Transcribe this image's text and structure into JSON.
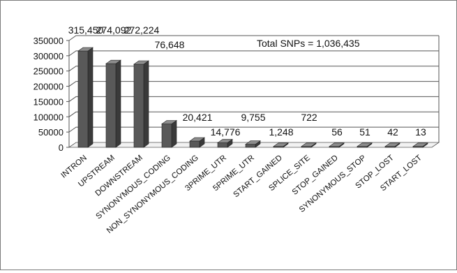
{
  "chart_data": {
    "type": "bar",
    "style": "3d-column",
    "annotation": "Total SNPs = 1,036,435",
    "categories": [
      "INTRON",
      "UPSTREAM",
      "DOWNSTREAM",
      "SYNONYMOUS_CODING",
      "NON_SYNONYMOUS_CODING",
      "3PRIME_UTR",
      "5PRIME_UTR",
      "START_GAINED",
      "SPLICE_SITE",
      "STOP_GAINED",
      "SYNONYMOUS_STOP",
      "STOP_LOST",
      "START_LOST"
    ],
    "values": [
      315450,
      274092,
      272224,
      76648,
      20421,
      14776,
      9755,
      1248,
      722,
      56,
      51,
      42,
      13
    ],
    "value_labels": [
      "315,450",
      "274,092",
      "272,224",
      "76,648",
      "20,421",
      "14,776",
      "9,755",
      "1,248",
      "722",
      "56",
      "51",
      "42",
      "13"
    ],
    "y_ticks": [
      "0",
      "50000",
      "100000",
      "150000",
      "200000",
      "250000",
      "300000",
      "350000"
    ],
    "ylim": [
      0,
      350000
    ],
    "grid": true,
    "legend": "none",
    "colors": {
      "bar_front": "#595959",
      "bar_side": "#3a3a3a",
      "bar_top": "#8c8c8c",
      "grid": "#555555",
      "wall": "#ffffff"
    }
  }
}
